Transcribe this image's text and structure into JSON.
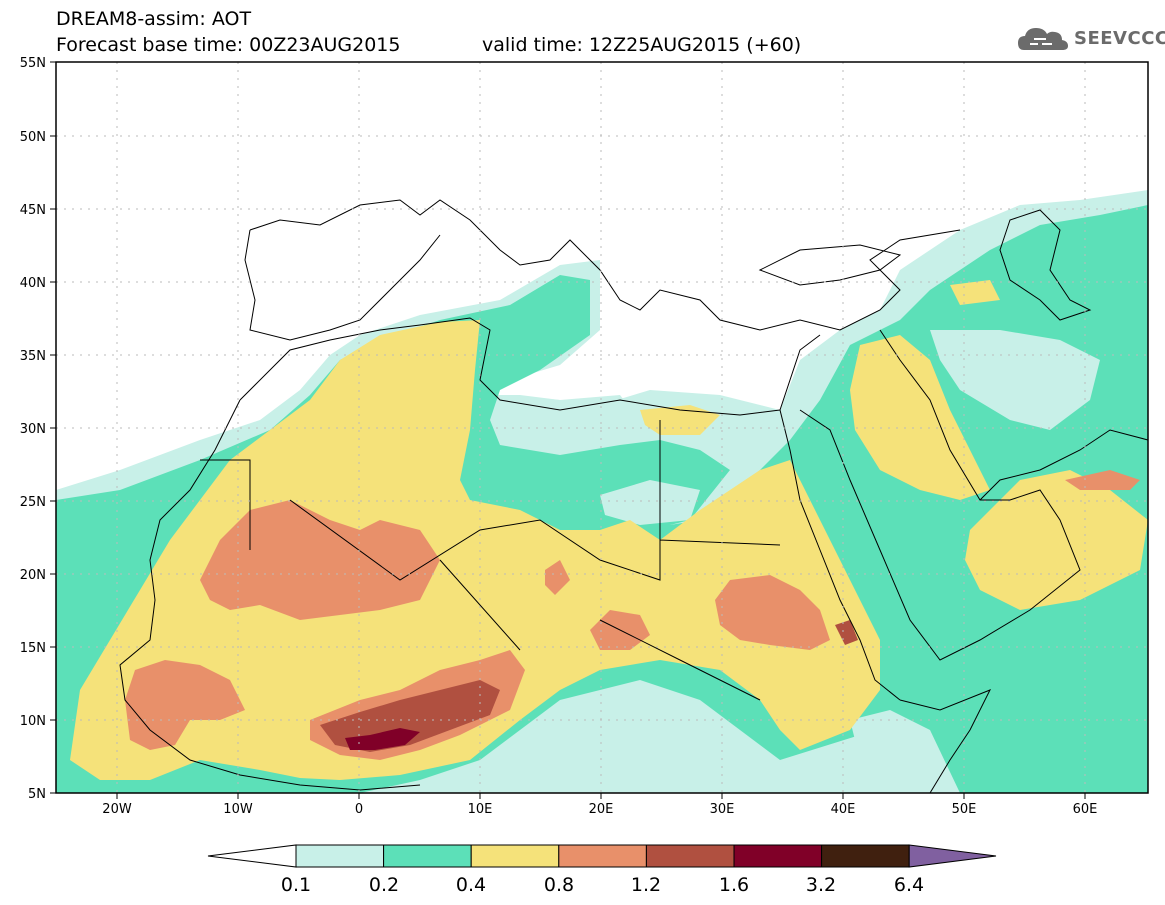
{
  "header": {
    "title": "DREAM8-assim: AOT",
    "base_time": "Forecast base time: 00Z23AUG2015",
    "valid_time": "valid time: 12Z25AUG2015 (+60)"
  },
  "logo": {
    "text": "SEEVCCC",
    "icon": "cloud-logo-icon"
  },
  "map": {
    "variable": "AOT",
    "projection": "lat-lon",
    "lon_range": [
      -25,
      65
    ],
    "lat_range": [
      5,
      55
    ],
    "lat_ticks": [
      "5N",
      "10N",
      "15N",
      "20N",
      "25N",
      "30N",
      "35N",
      "40N",
      "45N",
      "50N",
      "55N"
    ],
    "lon_ticks": [
      "20W",
      "10W",
      "0",
      "10E",
      "20E",
      "30E",
      "40E",
      "50E",
      "60E"
    ],
    "grid": "dotted"
  },
  "colorbar": {
    "levels": [
      "0.1",
      "0.2",
      "0.4",
      "0.8",
      "1.2",
      "1.6",
      "3.2",
      "6.4"
    ],
    "colors": [
      "#ffffff",
      "#c8f0e8",
      "#5ce0b8",
      "#f5e27a",
      "#e8906a",
      "#b05040",
      "#800028",
      "#40200f",
      "#8060a0"
    ]
  }
}
